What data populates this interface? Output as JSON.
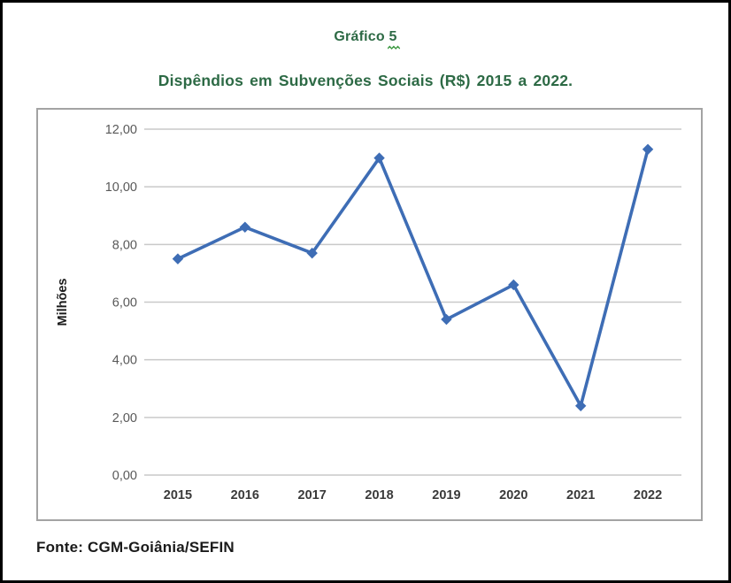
{
  "header": {
    "title": "Gráfico 5",
    "subtitle": "Dispêndios em Subvenções Sociais (R$) 2015 a 2022."
  },
  "chart_data": {
    "type": "line",
    "title": "Dispêndios em Subvenções Sociais (R$) 2015 a 2022.",
    "categories": [
      "2015",
      "2016",
      "2017",
      "2018",
      "2019",
      "2020",
      "2021",
      "2022"
    ],
    "values": [
      7.5,
      8.6,
      7.7,
      11.0,
      5.4,
      6.6,
      2.4,
      11.3
    ],
    "xlabel": "",
    "ylabel": "Milhões",
    "ylim": [
      0,
      12
    ],
    "ytick_step": 2,
    "ytick_labels": [
      "0,00",
      "2,00",
      "4,00",
      "6,00",
      "8,00",
      "10,00",
      "12,00"
    ],
    "grid": true,
    "legend_position": "none",
    "line_color": "#3e6db5",
    "marker": "diamond",
    "gridline_color": "#c9c9c9",
    "ytick_color": "#595959",
    "xtick_color": "#3a3a3a",
    "axis_title_color": "#1a1a1a"
  },
  "footer": {
    "source": "Fonte: CGM-Goiânia/SEFIN"
  },
  "colors": {
    "title_green": "#2d6a45",
    "frame_black": "#000000",
    "squiggle_green": "#3f9a44"
  }
}
